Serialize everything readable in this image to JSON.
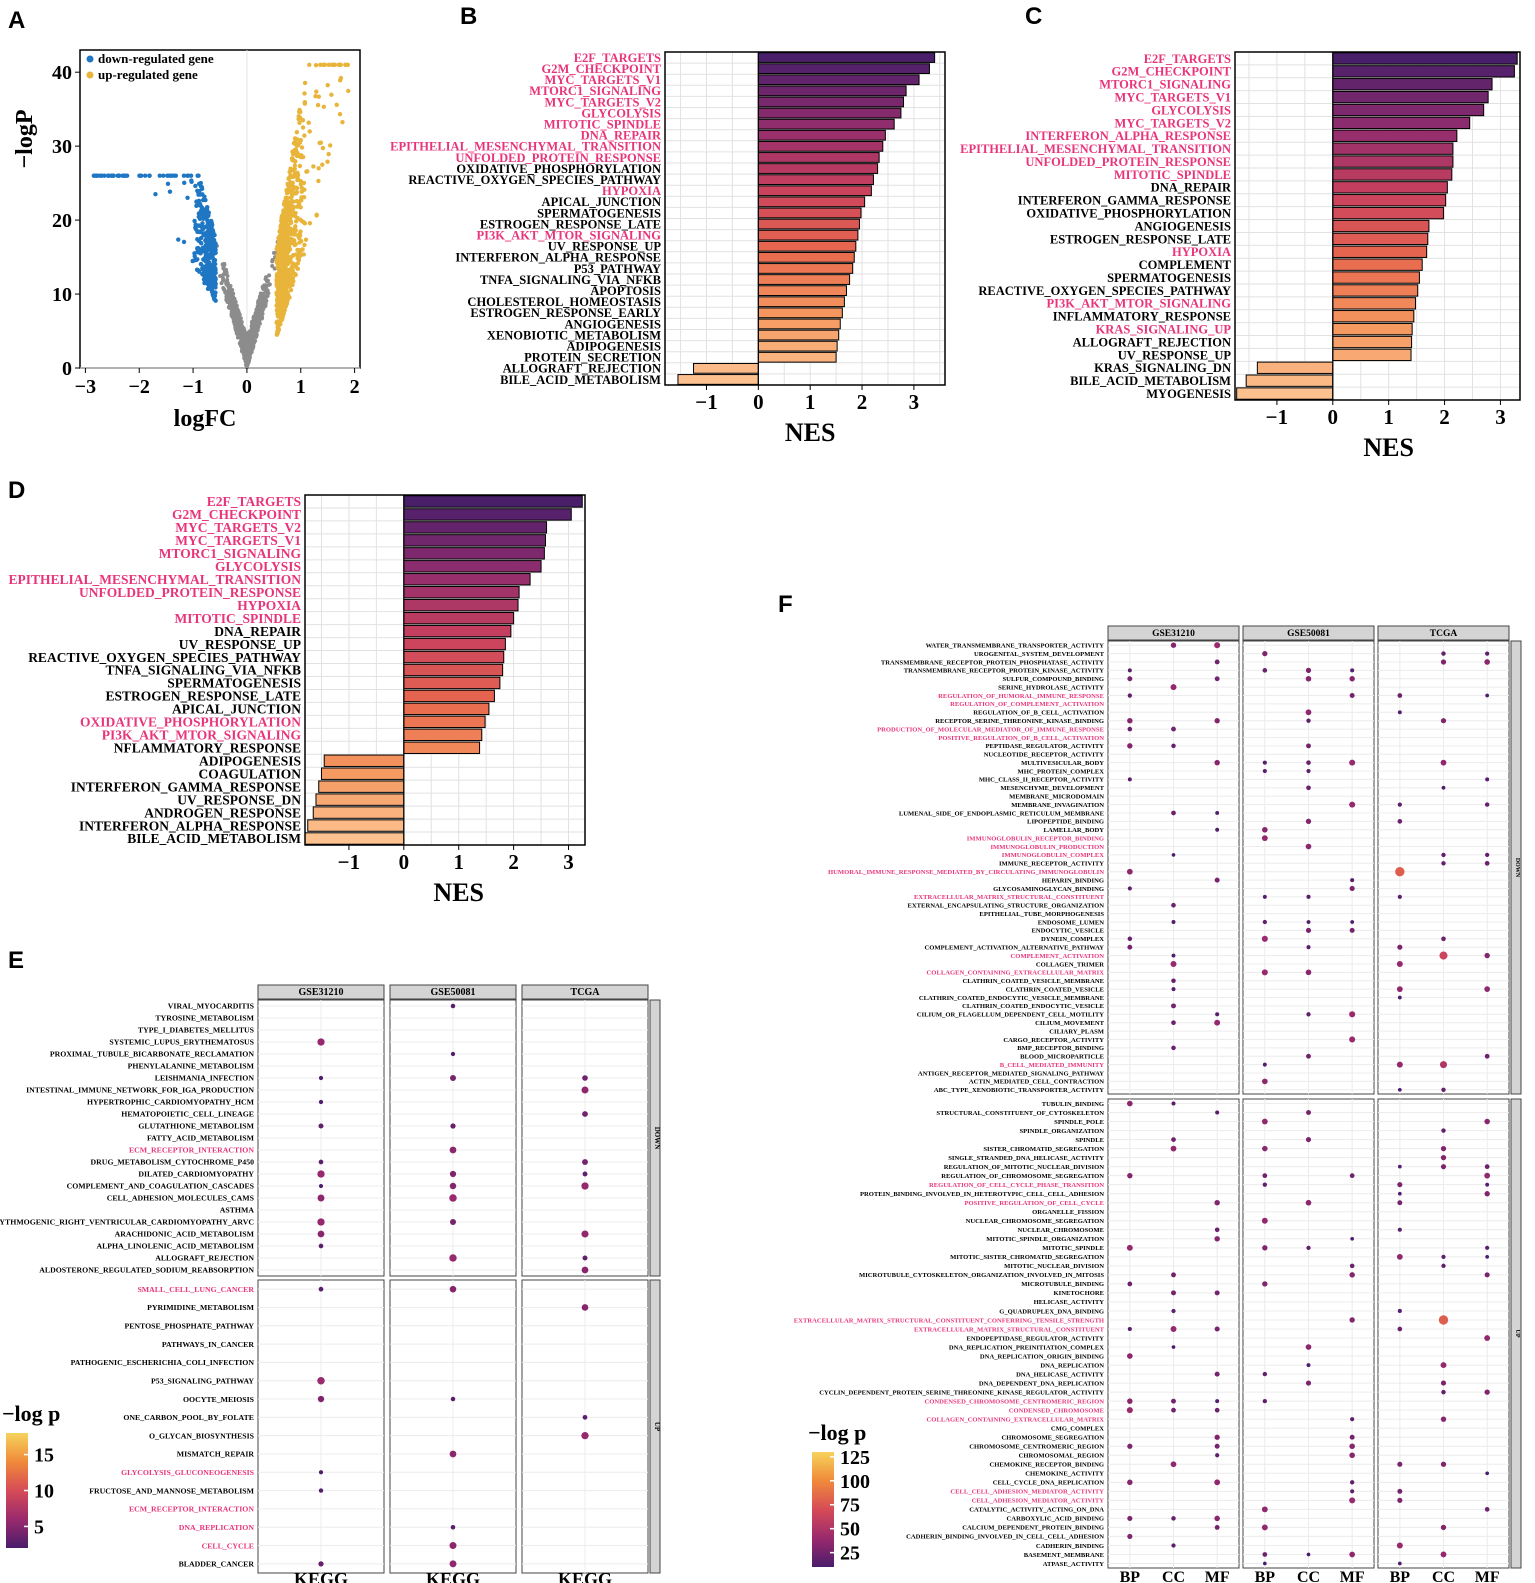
{
  "figure": {
    "panel_labels": [
      "A",
      "B",
      "C",
      "D",
      "E",
      "F"
    ],
    "gsea_x_label": "NES",
    "colors": {
      "down": "#1f77c4",
      "up": "#e8b43a",
      "ns": "#8c8c8c",
      "hl": "#e8357a",
      "strip": "#d4d4d4"
    }
  },
  "chart_data": [
    {
      "id": "A",
      "type": "scatter",
      "xlabel": "logFC",
      "ylabel": "−logP",
      "xlim": [
        -3.1,
        2.1
      ],
      "ylim": [
        0,
        43
      ],
      "xticks": [
        -3,
        -2,
        -1,
        0,
        1,
        2
      ],
      "xtick_labels": [
        "−3",
        "−2",
        "−1",
        "0",
        "1",
        "2"
      ],
      "yticks": [
        0,
        10,
        20,
        30,
        40
      ],
      "legend": [
        {
          "label": "down-regulated gene",
          "color": "#1f77c4"
        },
        {
          "label": "up-regulated gene",
          "color": "#e8b43a"
        }
      ],
      "legend_position": "top-left",
      "note": "volcano plot; points summarised by group"
    },
    {
      "id": "B",
      "type": "bar",
      "orientation": "horizontal",
      "xlabel": "NES",
      "xlim": [
        -1.8,
        3.6
      ],
      "xticks": [
        -1,
        0,
        1,
        2,
        3
      ],
      "xtick_labels": [
        "−1",
        "0",
        "1",
        "2",
        "3"
      ],
      "categories": [
        "E2F_TARGETS",
        "G2M_CHECKPOINT",
        "MYC_TARGETS_V1",
        "MTORC1_SIGNALING",
        "MYC_TARGETS_V2",
        "GLYCOLYSIS",
        "MITOTIC_SPINDLE",
        "DNA_REPAIR",
        "EPITHELIAL_MESENCHYMAL_TRANSITION",
        "UNFOLDED_PROTEIN_RESPONSE",
        "OXIDATIVE_PHOSPHORYLATION",
        "REACTIVE_OXYGEN_SPECIES_PATHWAY",
        "HYPOXIA",
        "APICAL_JUNCTION",
        "SPERMATOGENESIS",
        "ESTROGEN_RESPONSE_LATE",
        "PI3K_AKT_MTOR_SIGNALING",
        "UV_RESPONSE_UP",
        "INTERFERON_ALPHA_RESPONSE",
        "P53_PATHWAY",
        "TNFA_SIGNALING_VIA_NFKB",
        "APOPTOSIS",
        "CHOLESTEROL_HOMEOSTASIS",
        "ESTROGEN_RESPONSE_EARLY",
        "ANGIOGENESIS",
        "XENOBIOTIC_METABOLISM",
        "ADIPOGENESIS",
        "PROTEIN_SECRETION",
        "ALLOGRAFT_REJECTION",
        "BILE_ACID_METABOLISM"
      ],
      "values": [
        3.4,
        3.3,
        3.1,
        2.85,
        2.8,
        2.75,
        2.62,
        2.45,
        2.4,
        2.33,
        2.3,
        2.22,
        2.18,
        2.05,
        1.98,
        1.95,
        1.92,
        1.88,
        1.85,
        1.82,
        1.76,
        1.7,
        1.66,
        1.62,
        1.58,
        1.55,
        1.52,
        1.5,
        -1.25,
        -1.55
      ],
      "highlighted": [
        "E2F_TARGETS",
        "G2M_CHECKPOINT",
        "MYC_TARGETS_V1",
        "MTORC1_SIGNALING",
        "MYC_TARGETS_V2",
        "GLYCOLYSIS",
        "MITOTIC_SPINDLE",
        "DNA_REPAIR",
        "EPITHELIAL_MESENCHYMAL_TRANSITION",
        "UNFOLDED_PROTEIN_RESPONSE",
        "HYPOXIA",
        "PI3K_AKT_MTOR_SIGNALING"
      ]
    },
    {
      "id": "C",
      "type": "bar",
      "orientation": "horizontal",
      "xlabel": "NES",
      "xlim": [
        -1.75,
        3.35
      ],
      "xticks": [
        -1,
        0,
        1,
        2,
        3
      ],
      "xtick_labels": [
        "−1",
        "0",
        "1",
        "2",
        "3"
      ],
      "categories": [
        "E2F_TARGETS",
        "G2M_CHECKPOINT",
        "MTORC1_SIGNALING",
        "MYC_TARGETS_V1",
        "GLYCOLYSIS",
        "MYC_TARGETS_V2",
        "INTERFERON_ALPHA_RESPONSE",
        "EPITHELIAL_MESENCHYMAL_TRANSITION",
        "UNFOLDED_PROTEIN_RESPONSE",
        "MITOTIC_SPINDLE",
        "DNA_REPAIR",
        "INTERFERON_GAMMA_RESPONSE",
        "OXIDATIVE_PHOSPHORYLATION",
        "ANGIOGENESIS",
        "ESTROGEN_RESPONSE_LATE",
        "HYPOXIA",
        "COMPLEMENT",
        "SPERMATOGENESIS",
        "REACTIVE_OXYGEN_SPECIES_PATHWAY",
        "PI3K_AKT_MTOR_SIGNALING",
        "INFLAMMATORY_RESPONSE",
        "KRAS_SIGNALING_UP",
        "ALLOGRAFT_REJECTION",
        "UV_RESPONSE_UP",
        "KRAS_SIGNALING_DN",
        "BILE_ACID_METABOLISM",
        "MYOGENESIS"
      ],
      "values": [
        3.3,
        3.25,
        2.85,
        2.78,
        2.7,
        2.45,
        2.22,
        2.15,
        2.15,
        2.13,
        2.05,
        2.02,
        1.98,
        1.72,
        1.7,
        1.68,
        1.6,
        1.55,
        1.52,
        1.48,
        1.45,
        1.42,
        1.41,
        1.4,
        -1.35,
        -1.55,
        -1.72
      ],
      "highlighted": [
        "E2F_TARGETS",
        "G2M_CHECKPOINT",
        "MTORC1_SIGNALING",
        "MYC_TARGETS_V1",
        "GLYCOLYSIS",
        "MYC_TARGETS_V2",
        "INTERFERON_ALPHA_RESPONSE",
        "EPITHELIAL_MESENCHYMAL_TRANSITION",
        "UNFOLDED_PROTEIN_RESPONSE",
        "MITOTIC_SPINDLE",
        "HYPOXIA",
        "PI3K_AKT_MTOR_SIGNALING",
        "KRAS_SIGNALING_UP"
      ]
    },
    {
      "id": "D",
      "type": "bar",
      "orientation": "horizontal",
      "xlabel": "NES",
      "xlim": [
        -1.8,
        3.3
      ],
      "xticks": [
        -1,
        0,
        1,
        2,
        3
      ],
      "xtick_labels": [
        "−1",
        "0",
        "1",
        "2",
        "3"
      ],
      "categories": [
        "E2F_TARGETS",
        "G2M_CHECKPOINT",
        "MYC_TARGETS_V2",
        "MYC_TARGETS_V1",
        "MTORC1_SIGNALING",
        "GLYCOLYSIS",
        "EPITHELIAL_MESENCHYMAL_TRANSITION",
        "UNFOLDED_PROTEIN_RESPONSE",
        "HYPOXIA",
        "MITOTIC_SPINDLE",
        "DNA_REPAIR",
        "UV_RESPONSE_UP",
        "REACTIVE_OXYGEN_SPECIES_PATHWAY",
        "TNFA_SIGNALING_VIA_NFKB",
        "SPERMATOGENESIS",
        "ESTROGEN_RESPONSE_LATE",
        "APICAL_JUNCTION",
        "OXIDATIVE_PHOSPHORYLATION",
        "PI3K_AKT_MTOR_SIGNALING",
        "NFLAMMATORY_RESPONSE",
        "ADIPOGENESIS",
        "COAGULATION",
        "INTERFERON_GAMMA_RESPONSE",
        "UV_RESPONSE_DN",
        "ANDROGEN_RESPONSE",
        "INTERFERON_ALPHA_RESPONSE",
        "BILE_ACID_METABOLISM"
      ],
      "values": [
        3.25,
        3.05,
        2.6,
        2.58,
        2.56,
        2.5,
        2.3,
        2.1,
        2.08,
        2.0,
        1.95,
        1.85,
        1.82,
        1.8,
        1.75,
        1.65,
        1.55,
        1.48,
        1.42,
        1.38,
        -1.45,
        -1.5,
        -1.55,
        -1.6,
        -1.65,
        -1.75,
        -1.8
      ],
      "highlighted": [
        "E2F_TARGETS",
        "G2M_CHECKPOINT",
        "MYC_TARGETS_V2",
        "MYC_TARGETS_V1",
        "MTORC1_SIGNALING",
        "GLYCOLYSIS",
        "EPITHELIAL_MESENCHYMAL_TRANSITION",
        "UNFOLDED_PROTEIN_RESPONSE",
        "HYPOXIA",
        "MITOTIC_SPINDLE",
        "OXIDATIVE_PHOSPHORYLATION",
        "PI3K_AKT_MTOR_SIGNALING"
      ]
    },
    {
      "id": "E",
      "type": "scatter",
      "subtype": "dotplot",
      "facets": [
        "GSE31210",
        "GSE50081",
        "TCGA"
      ],
      "row_groups": [
        "DOWN",
        "UP"
      ],
      "x_category": "KEGG",
      "color_title": "−log p",
      "color_ticks": [
        5,
        10,
        15
      ],
      "color_range": [
        2,
        18
      ],
      "down_terms": [
        "VIRAL_MYOCARDITIS",
        "TYROSINE_METABOLISM",
        "TYPE_I_DIABETES_MELLITUS",
        "SYSTEMIC_LUPUS_ERYTHEMATOSUS",
        "PROXIMAL_TUBULE_BICARBONATE_RECLAMATION",
        "PHENYLALANINE_METABOLISM",
        "LEISHMANIA_INFECTION",
        "INTESTINAL_IMMUNE_NETWORK_FOR_IGA_PRODUCTION",
        "HYPERTROPHIC_CARDIOMYOPATHY_HCM",
        "HEMATOPOIETIC_CELL_LINEAGE",
        "GLUTATHIONE_METABOLISM",
        "FATTY_ACID_METABOLISM",
        "ECM_RECEPTOR_INTERACTION",
        "DRUG_METABOLISM_CYTOCHROME_P450",
        "DILATED_CARDIOMYOPATHY",
        "COMPLEMENT_AND_COAGULATION_CASCADES",
        "CELL_ADHESION_MOLECULES_CAMS",
        "ASTHMA",
        "ARRHYTHMOGENIC_RIGHT_VENTRICULAR_CARDIOMYOPATHY_ARVC",
        "ARACHIDONIC_ACID_METABOLISM",
        "ALPHA_LINOLENIC_ACID_METABOLISM",
        "ALLOGRAFT_REJECTION",
        "ALDOSTERONE_REGULATED_SODIUM_REABSORPTION"
      ],
      "up_terms": [
        "SMALL_CELL_LUNG_CANCER",
        "PYRIMIDINE_METABOLISM",
        "PENTOSE_PHOSPHATE_PATHWAY",
        "PATHWAYS_IN_CANCER",
        "PATHOGENIC_ESCHERICHIA_COLI_INFECTION",
        "P53_SIGNALING_PATHWAY",
        "OOCYTE_MEIOSIS",
        "ONE_CARBON_POOL_BY_FOLATE",
        "O_GLYCAN_BIOSYNTHESIS",
        "MISMATCH_REPAIR",
        "GLYCOLYSIS_GLUCONEOGENESIS",
        "FRUCTOSE_AND_MANNOSE_METABOLISM",
        "ECM_RECEPTOR_INTERACTION",
        "DNA_REPLICATION",
        "CELL_CYCLE",
        "BLADDER_CANCER"
      ],
      "highlighted": [
        "SMALL_CELL_LUNG_CANCER",
        "GLYCOLYSIS_GLUCONEOGENESIS",
        "ECM_RECEPTOR_INTERACTION",
        "DNA_REPLICATION",
        "CELL_CYCLE"
      ]
    },
    {
      "id": "F",
      "type": "scatter",
      "subtype": "dotplot",
      "facets": [
        "GSE31210",
        "GSE50081",
        "TCGA"
      ],
      "row_groups": [
        "DOWN",
        "UP"
      ],
      "x_categories": [
        "BP",
        "CC",
        "MF"
      ],
      "color_title": "−log p",
      "color_ticks": [
        25,
        50,
        75,
        100,
        125
      ],
      "color_range": [
        10,
        130
      ],
      "down_terms": [
        "WATER_TRANSMEMBRANE_TRANSPORTER_ACTIVITY",
        "UROGENITAL_SYSTEM_DEVELOPMENT",
        "TRANSMEMBRANE_RECEPTOR_PROTEIN_PHOSPHATASE_ACTIVITY",
        "TRANSMEMBRANE_RECEPTOR_PROTEIN_KINASE_ACTIVITY",
        "SULFUR_COMPOUND_BINDING",
        "SERINE_HYDROLASE_ACTIVITY",
        "REGULATION_OF_HUMORAL_IMMUNE_RESPONSE",
        "REGULATION_OF_COMPLEMENT_ACTIVATION",
        "REGULATION_OF_B_CELL_ACTIVATION",
        "RECEPTOR_SERINE_THREONINE_KINASE_BINDING",
        "PRODUCTION_OF_MOLECULAR_MEDIATOR_OF_IMMUNE_RESPONSE",
        "POSITIVE_REGULATION_OF_B_CELL_ACTIVATION",
        "PEPTIDASE_REGULATOR_ACTIVITY",
        "NUCLEOTIDE_RECEPTOR_ACTIVITY",
        "MULTIVESICULAR_BODY",
        "MHC_PROTEIN_COMPLEX",
        "MHC_CLASS_II_RECEPTOR_ACTIVITY",
        "MESENCHYME_DEVELOPMENT",
        "MEMBRANE_MICRODOMAIN",
        "MEMBRANE_INVAGINATION",
        "LUMENAL_SIDE_OF_ENDOPLASMIC_RETICULUM_MEMBRANE",
        "LIPOPEPTIDE_BINDING",
        "LAMELLAR_BODY",
        "IMMUNOGLOBULIN_RECEPTOR_BINDING",
        "IMMUNOGLOBULIN_PRODUCTION",
        "IMMUNOGLOBULIN_COMPLEX",
        "IMMUNE_RECEPTOR_ACTIVITY",
        "HUMORAL_IMMUNE_RESPONSE_MEDIATED_BY_CIRCULATING_IMMUNOGLOBULIN",
        "HEPARIN_BINDING",
        "GLYCOSAMINOGLYCAN_BINDING",
        "EXTRACELLULAR_MATRIX_STRUCTURAL_CONSTITUENT",
        "EXTERNAL_ENCAPSULATING_STRUCTURE_ORGANIZATION",
        "EPITHELIAL_TUBE_MORPHOGENESIS",
        "ENDOSOME_LUMEN",
        "ENDOCYTIC_VESICLE",
        "DYNEIN_COMPLEX",
        "COMPLEMENT_ACTIVATION_ALTERNATIVE_PATHWAY",
        "COMPLEMENT_ACTIVATION",
        "COLLAGEN_TRIMER",
        "COLLAGEN_CONTAINING_EXTRACELLULAR_MATRIX",
        "CLATHRIN_COATED_VESICLE_MEMBRANE",
        "CLATHRIN_COATED_VESICLE",
        "CLATHRIN_COATED_ENDOCYTIC_VESICLE_MEMBRANE",
        "CLATHRIN_COATED_ENDOCYTIC_VESICLE",
        "CILIUM_OR_FLAGELLUM_DEPENDENT_CELL_MOTILITY",
        "CILIUM_MOVEMENT",
        "CILIARY_PLASM",
        "CARGO_RECEPTOR_ACTIVITY",
        "BMP_RECEPTOR_BINDING",
        "BLOOD_MICROPARTICLE",
        "B_CELL_MEDIATED_IMMUNITY",
        "ANTIGEN_RECEPTOR_MEDIATED_SIGNALING_PATHWAY",
        "ACTIN_MEDIATED_CELL_CONTRACTION",
        "ABC_TYPE_XENOBIOTIC_TRANSPORTER_ACTIVITY"
      ],
      "up_terms": [
        "TUBULIN_BINDING",
        "STRUCTURAL_CONSTITUENT_OF_CYTOSKELETON",
        "SPINDLE_POLE",
        "SPINDLE_ORGANIZATION",
        "SPINDLE",
        "SISTER_CHROMATID_SEGREGATION",
        "SINGLE_STRANDED_DNA_HELICASE_ACTIVITY",
        "REGULATION_OF_MITOTIC_NUCLEAR_DIVISION",
        "REGULATION_OF_CHROMOSOME_SEGREGATION",
        "REGULATION_OF_CELL_CYCLE_PHASE_TRANSITION",
        "PROTEIN_BINDING_INVOLVED_IN_HETEROTYPIC_CELL_CELL_ADHESION",
        "POSITIVE_REGULATION_OF_CELL_CYCLE",
        "ORGANELLE_FISSION",
        "NUCLEAR_CHROMOSOME_SEGREGATION",
        "NUCLEAR_CHROMOSOME",
        "MITOTIC_SPINDLE_ORGANIZATION",
        "MITOTIC_SPINDLE",
        "MITOTIC_SISTER_CHROMATID_SEGREGATION",
        "MITOTIC_NUCLEAR_DIVISION",
        "MICROTUBULE_CYTOSKELETON_ORGANIZATION_INVOLVED_IN_MITOSIS",
        "MICROTUBULE_BINDING",
        "KINETOCHORE",
        "HELICASE_ACTIVITY",
        "G_QUADRUPLEX_DNA_BINDING",
        "EXTRACELLULAR_MATRIX_STRUCTURAL_CONSTITUENT_CONFERRING_TENSILE_STRENGTH",
        "EXTRACELLULAR_MATRIX_STRUCTURAL_CONSTITUENT",
        "ENDOPEPTIDASE_REGULATOR_ACTIVITY",
        "DNA_REPLICATION_PREINITIATION_COMPLEX",
        "DNA_REPLICATION_ORIGIN_BINDING",
        "DNA_REPLICATION",
        "DNA_HELICASE_ACTIVITY",
        "DNA_DEPENDENT_DNA_REPLICATION",
        "CYCLIN_DEPENDENT_PROTEIN_SERINE_THREONINE_KINASE_REGULATOR_ACTIVITY",
        "CONDENSED_CHROMOSOME_CENTROMERIC_REGION",
        "CONDENSED_CHROMOSOME",
        "COLLAGEN_CONTAINING_EXTRACELLULAR_MATRIX",
        "CMG_COMPLEX",
        "CHROMOSOME_SEGREGATION",
        "CHROMOSOME_CENTROMERIC_REGION",
        "CHROMOSOMAL_REGION",
        "CHEMOKINE_RECEPTOR_BINDING",
        "CHEMOKINE_ACTIVITY",
        "CELL_CYCLE_DNA_REPLICATION",
        "CELL_CELL_ADHESION_MEDIATOR_ACTIVITY",
        "CELL_ADHESION_MEDIATOR_ACTIVITY",
        "CATALYTIC_ACTIVITY_ACTING_ON_DNA",
        "CARBOXYLIC_ACID_BINDING",
        "CALCIUM_DEPENDENT_PROTEIN_BINDING",
        "CADHERIN_BINDING_INVOLVED_IN_CELL_CELL_ADHESION",
        "CADHERIN_BINDING",
        "BASEMENT_MEMBRANE",
        "ATPASE_ACTIVITY"
      ],
      "highlighted": [
        "REGULATION_OF_HUMORAL_IMMUNE_RESPONSE",
        "REGULATION_OF_COMPLEMENT_ACTIVATION",
        "PRODUCTION_OF_MOLECULAR_MEDIATOR_OF_IMMUNE_RESPONSE",
        "POSITIVE_REGULATION_OF_B_CELL_ACTIVATION",
        "IMMUNOGLOBULIN_RECEPTOR_BINDING",
        "IMMUNOGLOBULIN_PRODUCTION",
        "IMMUNOGLOBULIN_COMPLEX",
        "HUMORAL_IMMUNE_RESPONSE_MEDIATED_BY_CIRCULATING_IMMUNOGLOBULIN",
        "COMPLEMENT_ACTIVATION",
        "B_CELL_MEDIATED_IMMUNITY",
        "REGULATION_OF_CELL_CYCLE_PHASE_TRANSITION",
        "POSITIVE_REGULATION_OF_CELL_CYCLE",
        "EXTRACELLULAR_MATRIX_STRUCTURAL_CONSTITUENT_CONFERRING_TENSILE_STRENGTH",
        "EXTRACELLULAR_MATRIX_STRUCTURAL_CONSTITUENT",
        "CONDENSED_CHROMOSOME_CENTROMERIC_REGION",
        "CONDENSED_CHROMOSOME",
        "COLLAGEN_CONTAINING_EXTRACELLULAR_MATRIX",
        "CELL_CELL_ADHESION_MEDIATOR_ACTIVITY",
        "CELL_ADHESION_MEDIATOR_ACTIVITY"
      ]
    }
  ]
}
